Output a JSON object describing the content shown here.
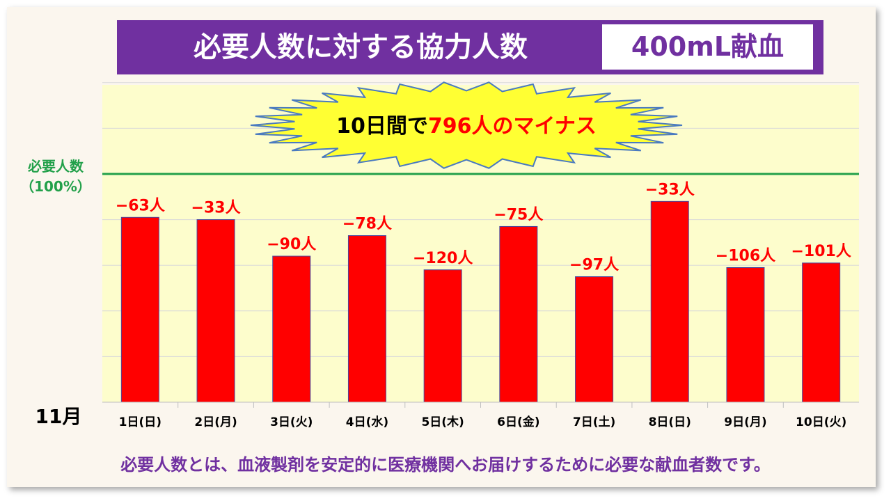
{
  "header": {
    "title": "必要人数に対する協力人数",
    "subtitle": "400mL献血"
  },
  "callout": {
    "prefix": "10日間で",
    "highlight": "796人のマイナス"
  },
  "reference": {
    "label_line1": "必要人数",
    "label_line2": "（100%）"
  },
  "month_label": "11月",
  "footer_note": "必要人数とは、血液製剤を安定的に医療機関へお届けするために必要な献血者数です。",
  "colors": {
    "bar": "#ff0000",
    "reference_line": "#22a04a",
    "plot_background": "#fdfdcc",
    "callout_fill": "#ffff33",
    "callout_stroke": "#4a7ac0",
    "accent": "#7030a0"
  },
  "chart_data": {
    "type": "bar",
    "categories": [
      "1日(日)",
      "2日(月)",
      "3日(火)",
      "4日(水)",
      "5日(木)",
      "6日(金)",
      "7日(土)",
      "8日(日)",
      "9日(月)",
      "10日(火)"
    ],
    "values": [
      81,
      80,
      64,
      73,
      58,
      77,
      55,
      88,
      59,
      61
    ],
    "value_unit": "% of required",
    "data_labels": [
      "−63人",
      "−33人",
      "−90人",
      "−78人",
      "−120人",
      "−75人",
      "−97人",
      "−33人",
      "−106人",
      "−101人"
    ],
    "reference_value": 100,
    "ylim": [
      0,
      140
    ],
    "grid": true,
    "xlabel": "",
    "ylabel": ""
  }
}
